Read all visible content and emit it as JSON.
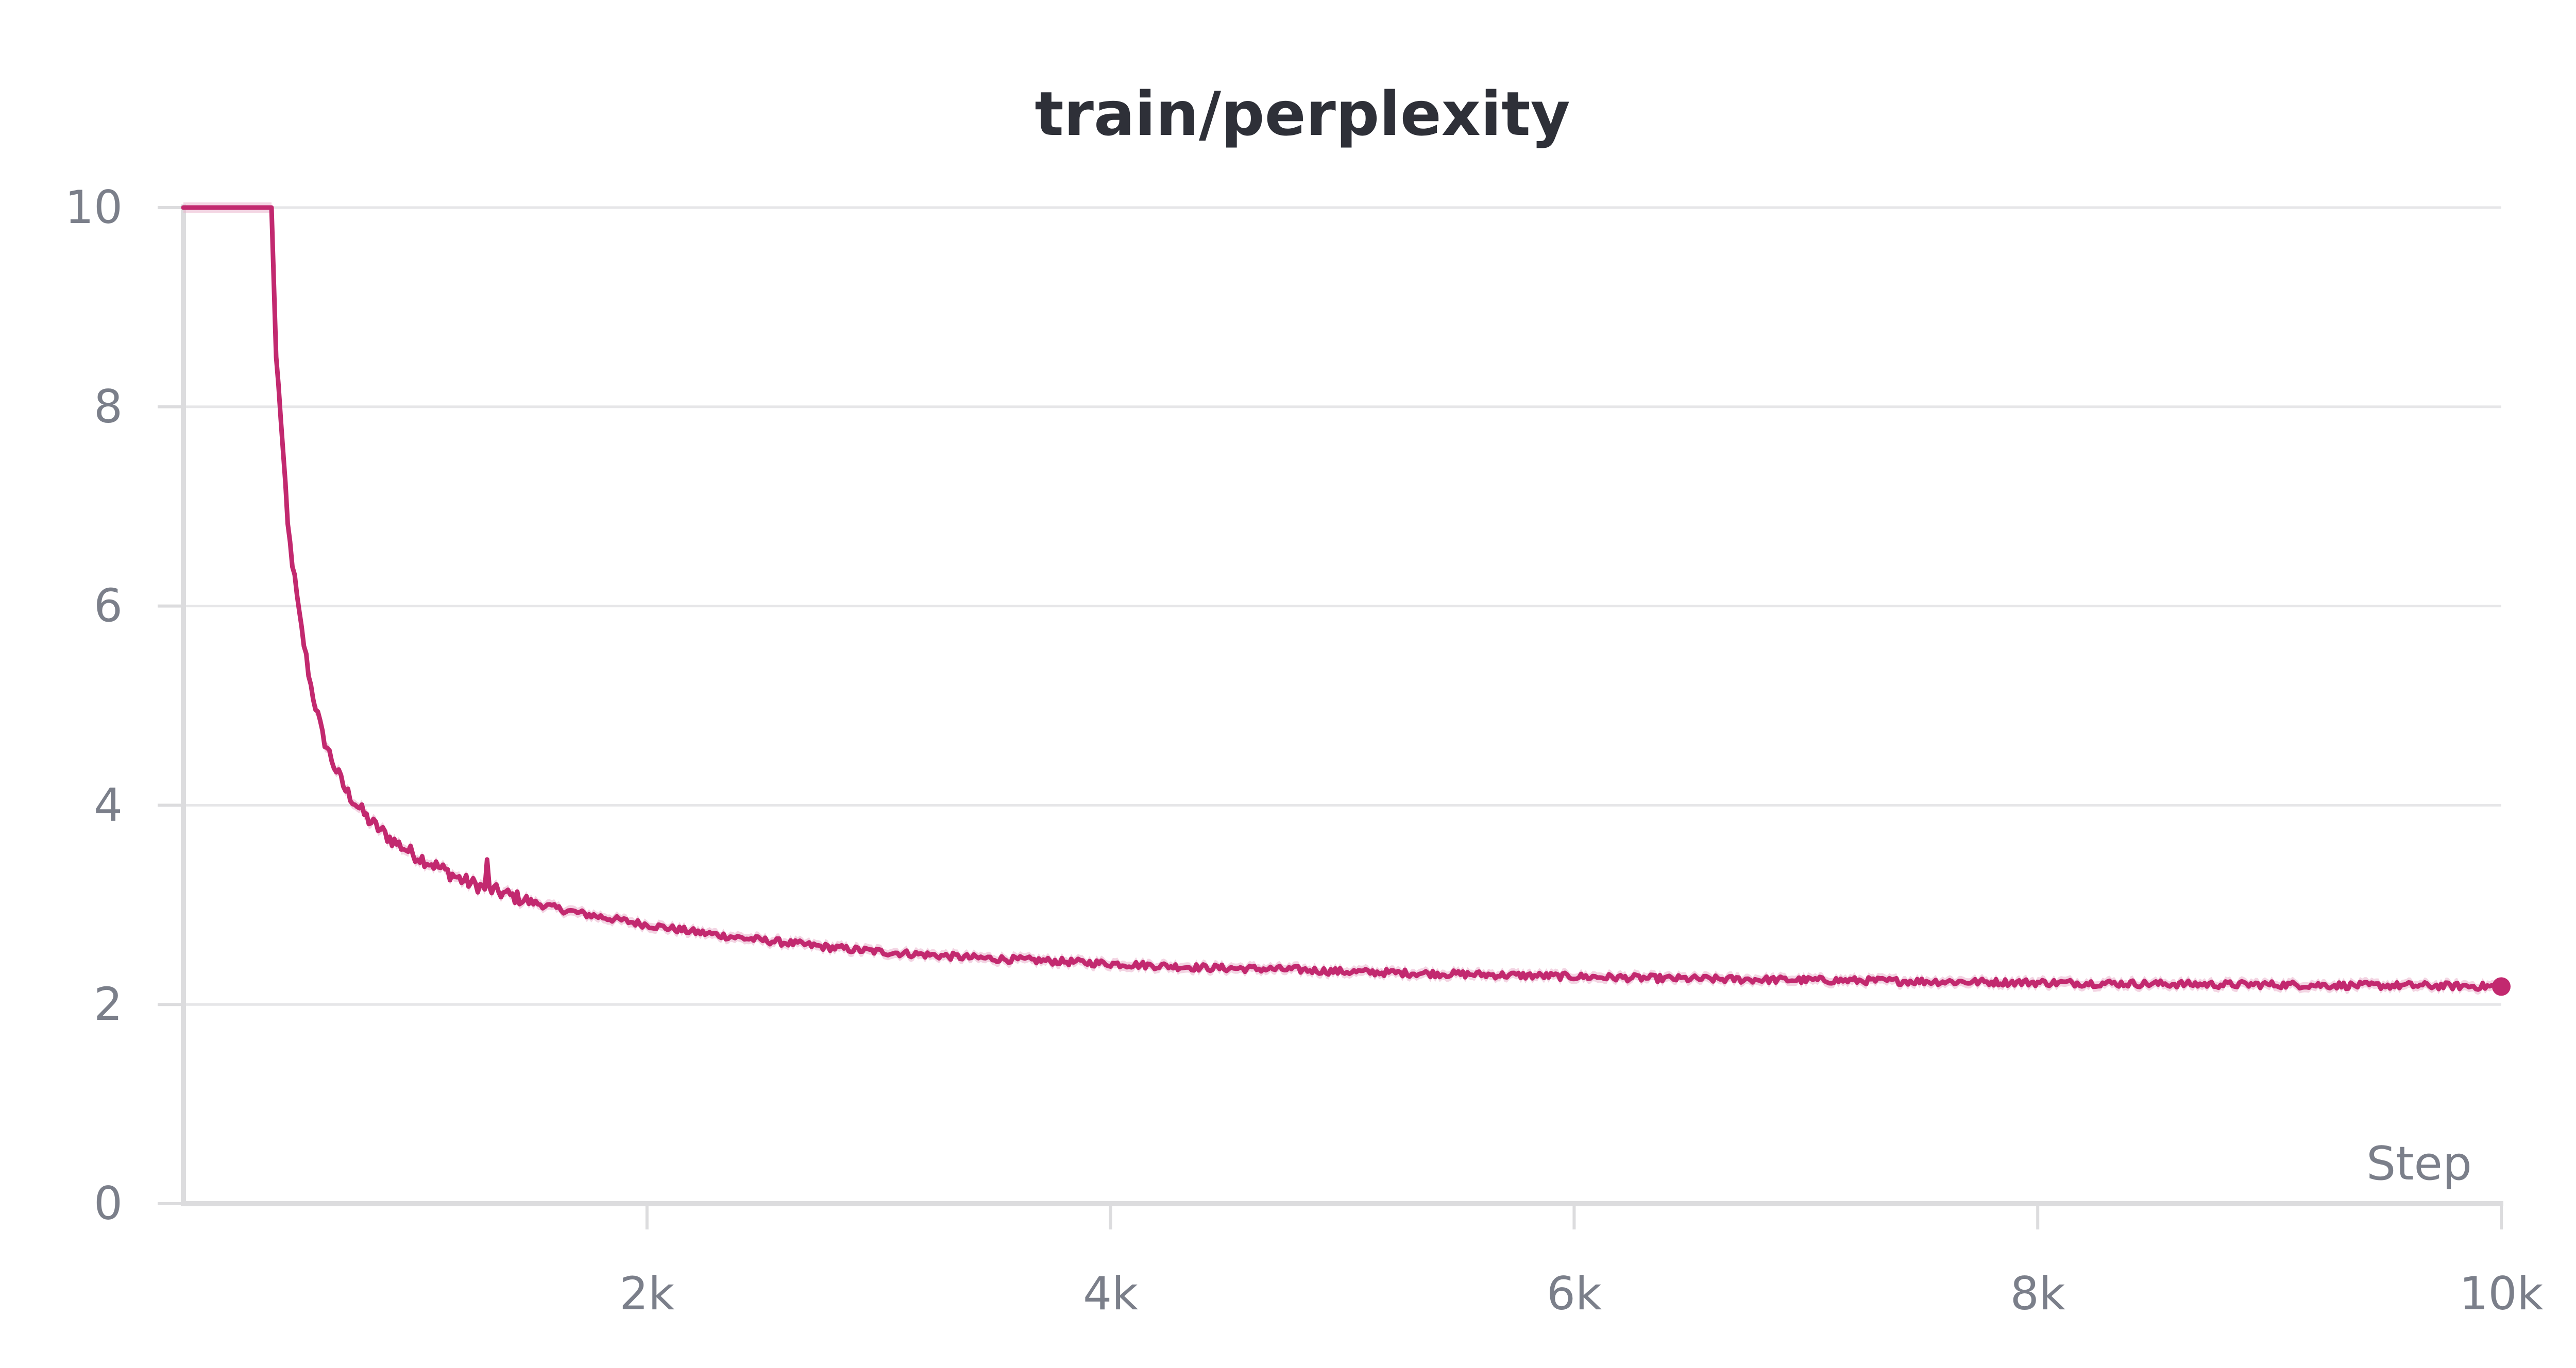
{
  "colors": {
    "series": "#c2296f",
    "series_band": "#eab2cc",
    "grid": "#e6e6e8",
    "axis": "#dcdcde",
    "tick_text": "#7b7f8a",
    "title_text": "#2e3038"
  },
  "chart_data": {
    "type": "line",
    "title": "train/perplexity",
    "xlabel": "Step",
    "ylabel": "",
    "xlim": [
      0,
      10000
    ],
    "ylim": [
      0,
      10
    ],
    "grid": true,
    "x_ticks": [
      {
        "value": 2000,
        "label": "2k"
      },
      {
        "value": 4000,
        "label": "4k"
      },
      {
        "value": 6000,
        "label": "6k"
      },
      {
        "value": 8000,
        "label": "8k"
      },
      {
        "value": 10000,
        "label": "10k"
      }
    ],
    "y_ticks": [
      {
        "value": 0,
        "label": "0"
      },
      {
        "value": 2,
        "label": "2"
      },
      {
        "value": 4,
        "label": "4"
      },
      {
        "value": 6,
        "label": "6"
      },
      {
        "value": 8,
        "label": "8"
      },
      {
        "value": 10,
        "label": "10"
      }
    ],
    "series": [
      {
        "x": [
          0,
          100,
          200,
          300,
          350,
          380,
          400,
          420,
          450,
          500,
          550,
          600,
          650,
          700,
          750,
          800,
          900,
          1000,
          1100,
          1200,
          1300,
          1400,
          1500,
          1600,
          1700,
          1800,
          1900,
          2000,
          2200,
          2400,
          2600,
          2800,
          3000,
          3200,
          3400,
          3600,
          3800,
          4000,
          4200,
          4400,
          4600,
          4800,
          5000,
          5200,
          5400,
          5600,
          5800,
          6000,
          6200,
          6400,
          6600,
          6800,
          7000,
          7200,
          7400,
          7600,
          7800,
          8000,
          8200,
          8400,
          8600,
          8800,
          9000,
          9200,
          9400,
          9600,
          9800,
          10000
        ],
        "y": [
          10,
          10,
          10,
          10,
          10,
          10,
          8.5,
          7.9,
          6.8,
          5.9,
          5.2,
          4.7,
          4.4,
          4.15,
          4.0,
          3.85,
          3.65,
          3.5,
          3.38,
          3.25,
          3.17,
          3.1,
          3.03,
          2.97,
          2.92,
          2.88,
          2.84,
          2.8,
          2.73,
          2.67,
          2.62,
          2.57,
          2.53,
          2.5,
          2.47,
          2.45,
          2.43,
          2.41,
          2.39,
          2.37,
          2.36,
          2.35,
          2.33,
          2.32,
          2.31,
          2.3,
          2.29,
          2.28,
          2.27,
          2.26,
          2.255,
          2.25,
          2.245,
          2.24,
          2.235,
          2.23,
          2.225,
          2.22,
          2.215,
          2.21,
          2.205,
          2.2,
          2.2,
          2.195,
          2.19,
          2.19,
          2.185,
          2.18
        ]
      }
    ]
  }
}
